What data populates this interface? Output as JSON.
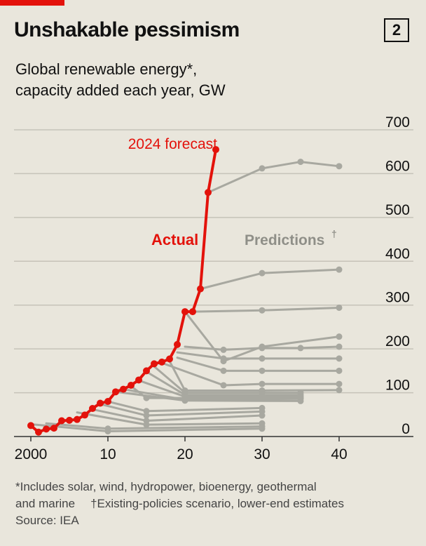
{
  "header": {
    "title": "Unshakable pessimism",
    "chart_number": "2",
    "subtitle_line1": "Global renewable energy*,",
    "subtitle_line2": "capacity added each year, GW"
  },
  "footnotes": {
    "line1": "*Includes solar, wind, hydropower, bioenergy, geothermal",
    "line2a": "and marine",
    "line2b": "†Existing-policies scenario, lower-end estimates",
    "source": "Source: IEA"
  },
  "chart_data": {
    "type": "line",
    "x_tick_labels": [
      "2000",
      "10",
      "20",
      "30",
      "40"
    ],
    "x_ticks": [
      2000,
      2010,
      2020,
      2030,
      2040
    ],
    "xlim": [
      1998,
      2044
    ],
    "y_tick_labels": [
      "0",
      "100",
      "200",
      "300",
      "400",
      "500",
      "600",
      "700"
    ],
    "y_ticks": [
      0,
      100,
      200,
      300,
      400,
      500,
      600,
      700
    ],
    "ylim": [
      0,
      700
    ],
    "grid": true,
    "annotations": {
      "forecast": "2024 forecast",
      "actual": "Actual",
      "predictions": "Predictions",
      "predictions_mark": "†"
    },
    "colors": {
      "actual": "#e3120b",
      "predictions": "#a8a8a0",
      "grid": "#c6c3b9",
      "axis": "#333333",
      "text": "#111111"
    },
    "actual": {
      "x": [
        2000,
        2001,
        2002,
        2003,
        2004,
        2005,
        2006,
        2007,
        2008,
        2009,
        2010,
        2011,
        2012,
        2013,
        2014,
        2015,
        2016,
        2017,
        2018,
        2019,
        2020,
        2021,
        2022,
        2023,
        2024
      ],
      "y": [
        25,
        10,
        17,
        19,
        36,
        37,
        39,
        49,
        64,
        76,
        80,
        102,
        108,
        117,
        129,
        150,
        166,
        170,
        177,
        210,
        285,
        285,
        337,
        557,
        655
      ]
    },
    "predictions": [
      {
        "x": [
          2000,
          2010,
          2030
        ],
        "y": [
          28,
          12,
          18
        ]
      },
      {
        "x": [
          2002,
          2010,
          2030
        ],
        "y": [
          30,
          18,
          23
        ]
      },
      {
        "x": [
          2006,
          2015,
          2030
        ],
        "y": [
          55,
          27,
          30
        ]
      },
      {
        "x": [
          2008,
          2015,
          2030
        ],
        "y": [
          62,
          36,
          48
        ]
      },
      {
        "x": [
          2009,
          2015,
          2030
        ],
        "y": [
          74,
          48,
          57
        ]
      },
      {
        "x": [
          2010,
          2015,
          2030
        ],
        "y": [
          80,
          58,
          65
        ]
      },
      {
        "x": [
          2011,
          2020,
          2035
        ],
        "y": [
          102,
          82,
          81
        ]
      },
      {
        "x": [
          2012,
          2020,
          2035
        ],
        "y": [
          108,
          84,
          86
        ]
      },
      {
        "x": [
          2013,
          2015,
          2035
        ],
        "y": [
          115,
          88,
          88
        ]
      },
      {
        "x": [
          2014,
          2020,
          2035
        ],
        "y": [
          128,
          91,
          91
        ]
      },
      {
        "x": [
          2015,
          2020,
          2035
        ],
        "y": [
          148,
          95,
          95
        ]
      },
      {
        "x": [
          2016,
          2020,
          2030,
          2035
        ],
        "y": [
          160,
          100,
          100,
          100
        ]
      },
      {
        "x": [
          2017,
          2025,
          2030,
          2040
        ],
        "y": [
          168,
          117,
          120,
          120
        ]
      },
      {
        "x": [
          2018,
          2020,
          2030,
          2040
        ],
        "y": [
          172,
          105,
          105,
          106
        ]
      },
      {
        "x": [
          2019,
          2025,
          2030,
          2040
        ],
        "y": [
          180,
          150,
          150,
          150
        ]
      },
      {
        "x": [
          2019,
          2025,
          2030,
          2040
        ],
        "y": [
          192,
          178,
          178,
          178
        ]
      },
      {
        "x": [
          2020,
          2025,
          2030,
          2035,
          2040
        ],
        "y": [
          205,
          198,
          202,
          202,
          205
        ]
      },
      {
        "x": [
          2020,
          2025,
          2030,
          2040
        ],
        "y": [
          285,
          172,
          205,
          228
        ]
      },
      {
        "x": [
          2021,
          2030,
          2040
        ],
        "y": [
          285,
          288,
          294
        ]
      },
      {
        "x": [
          2022,
          2030,
          2040
        ],
        "y": [
          337,
          373,
          381
        ]
      },
      {
        "x": [
          2023,
          2030,
          2035,
          2040
        ],
        "y": [
          557,
          612,
          627,
          617
        ]
      }
    ]
  }
}
